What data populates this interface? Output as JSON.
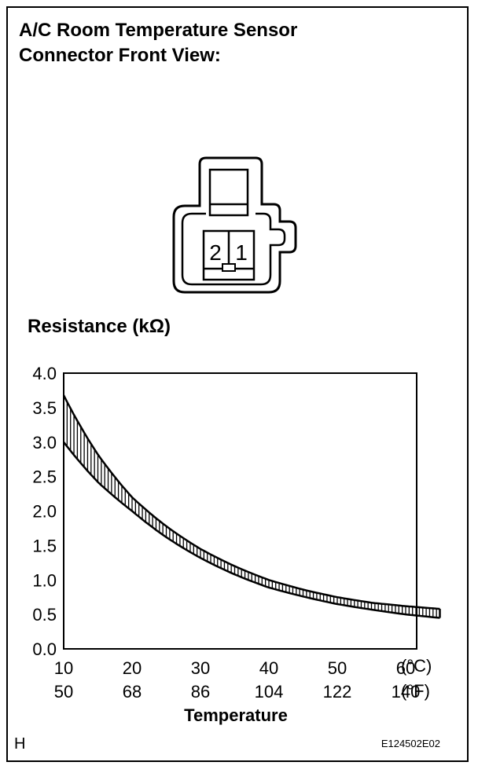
{
  "header": {
    "title_line1": "A/C Room Temperature Sensor",
    "title_line2": "Connector Front View:"
  },
  "connector": {
    "pins": [
      "2",
      "1"
    ]
  },
  "footer": {
    "left_mark": "H",
    "figure_code": "E124502E02"
  },
  "chart_data": {
    "type": "area",
    "ylabel": "Resistance (kΩ)",
    "xlabel": "Temperature",
    "ylim": [
      0.0,
      4.0
    ],
    "xlim": [
      10,
      65
    ],
    "y_ticks": [
      "4.0",
      "3.5",
      "3.0",
      "2.5",
      "2.0",
      "1.5",
      "1.0",
      "0.5",
      "0.0"
    ],
    "y_tick_values": [
      4.0,
      3.5,
      3.0,
      2.5,
      2.0,
      1.5,
      1.0,
      0.5,
      0.0
    ],
    "x_ticks_c": [
      "10",
      "20",
      "30",
      "40",
      "50",
      "60"
    ],
    "x_ticks_f": [
      "50",
      "68",
      "86",
      "104",
      "122",
      "140"
    ],
    "x_tick_values": [
      10,
      20,
      30,
      40,
      50,
      60
    ],
    "unit_c": "(°C)",
    "unit_f": "(°F)",
    "grid": false,
    "series": [
      {
        "x": [
          10,
          15,
          20,
          25,
          30,
          35,
          40,
          45,
          50,
          55,
          60,
          65
        ],
        "values": [
          3.68,
          2.82,
          2.2,
          1.78,
          1.45,
          1.2,
          1.0,
          0.86,
          0.75,
          0.67,
          0.62,
          0.58
        ]
      },
      {
        "x": [
          10,
          15,
          20,
          25,
          30,
          35,
          40,
          45,
          50,
          55,
          60,
          65
        ],
        "values": [
          3.0,
          2.42,
          2.0,
          1.62,
          1.32,
          1.08,
          0.89,
          0.76,
          0.65,
          0.57,
          0.5,
          0.45
        ]
      }
    ]
  }
}
